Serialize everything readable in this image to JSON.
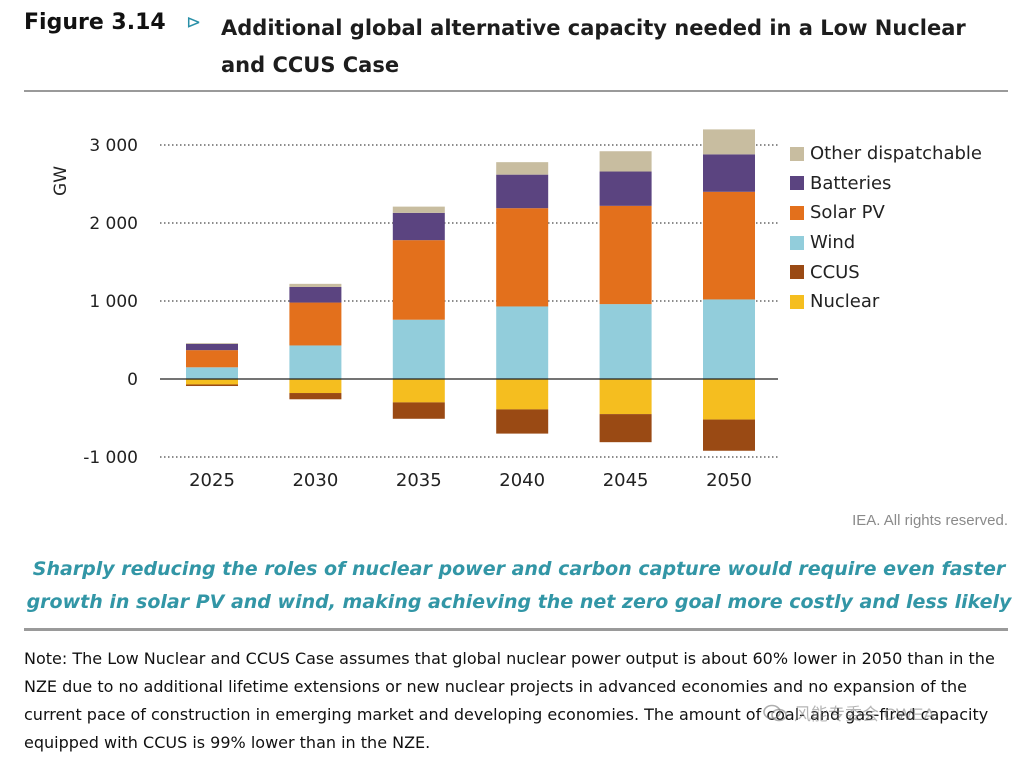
{
  "header": {
    "figure_label": "Figure 3.14",
    "arrow": "⊳",
    "title": "Additional global alternative capacity needed in a Low Nuclear and CCUS Case"
  },
  "chart_data": {
    "type": "bar",
    "stacked": true,
    "ylabel": "GW",
    "ylim": [
      -1100,
      3200
    ],
    "yticks": [
      -1000,
      0,
      1000,
      2000,
      3000
    ],
    "ytick_labels": [
      "-1 000",
      "0",
      "1 000",
      "2 000",
      "3 000"
    ],
    "categories": [
      "2025",
      "2030",
      "2035",
      "2040",
      "2045",
      "2050"
    ],
    "series": [
      {
        "name": "Nuclear",
        "color": "#f5be1f",
        "values": [
          -70,
          -180,
          -300,
          -390,
          -450,
          -520
        ]
      },
      {
        "name": "CCUS",
        "color": "#9a4a14",
        "values": [
          -20,
          -80,
          -210,
          -310,
          -360,
          -400
        ]
      },
      {
        "name": "Wind",
        "color": "#92cddb",
        "values": [
          150,
          430,
          760,
          930,
          960,
          1020
        ]
      },
      {
        "name": "Solar PV",
        "color": "#e3701c",
        "values": [
          220,
          550,
          1020,
          1260,
          1260,
          1380
        ]
      },
      {
        "name": "Batteries",
        "color": "#5b4480",
        "values": [
          80,
          200,
          350,
          430,
          440,
          480
        ]
      },
      {
        "name": "Other dispatchable",
        "color": "#c8bda0",
        "values": [
          10,
          40,
          80,
          160,
          260,
          320
        ]
      }
    ],
    "legend_order": [
      "Other dispatchable",
      "Batteries",
      "Solar PV",
      "Wind",
      "CCUS",
      "Nuclear"
    ],
    "legend_position": "right"
  },
  "credit": "IEA. All rights reserved.",
  "summary": "Sharply reducing the roles of nuclear power and carbon capture would require even faster growth in solar PV and wind, making achieving the net zero goal more costly and less likely",
  "note": "Note: The Low Nuclear and CCUS Case assumes that global nuclear power output is about 60% lower in 2050 than in the NZE due to no additional lifetime extensions or new nuclear projects in advanced economies and no expansion of the current pace of construction in emerging market and developing economies. The amount of coal- and gas-fired capacity equipped with CCUS is 99% lower than in the NZE.",
  "watermark": "风能专委会 CWEA"
}
